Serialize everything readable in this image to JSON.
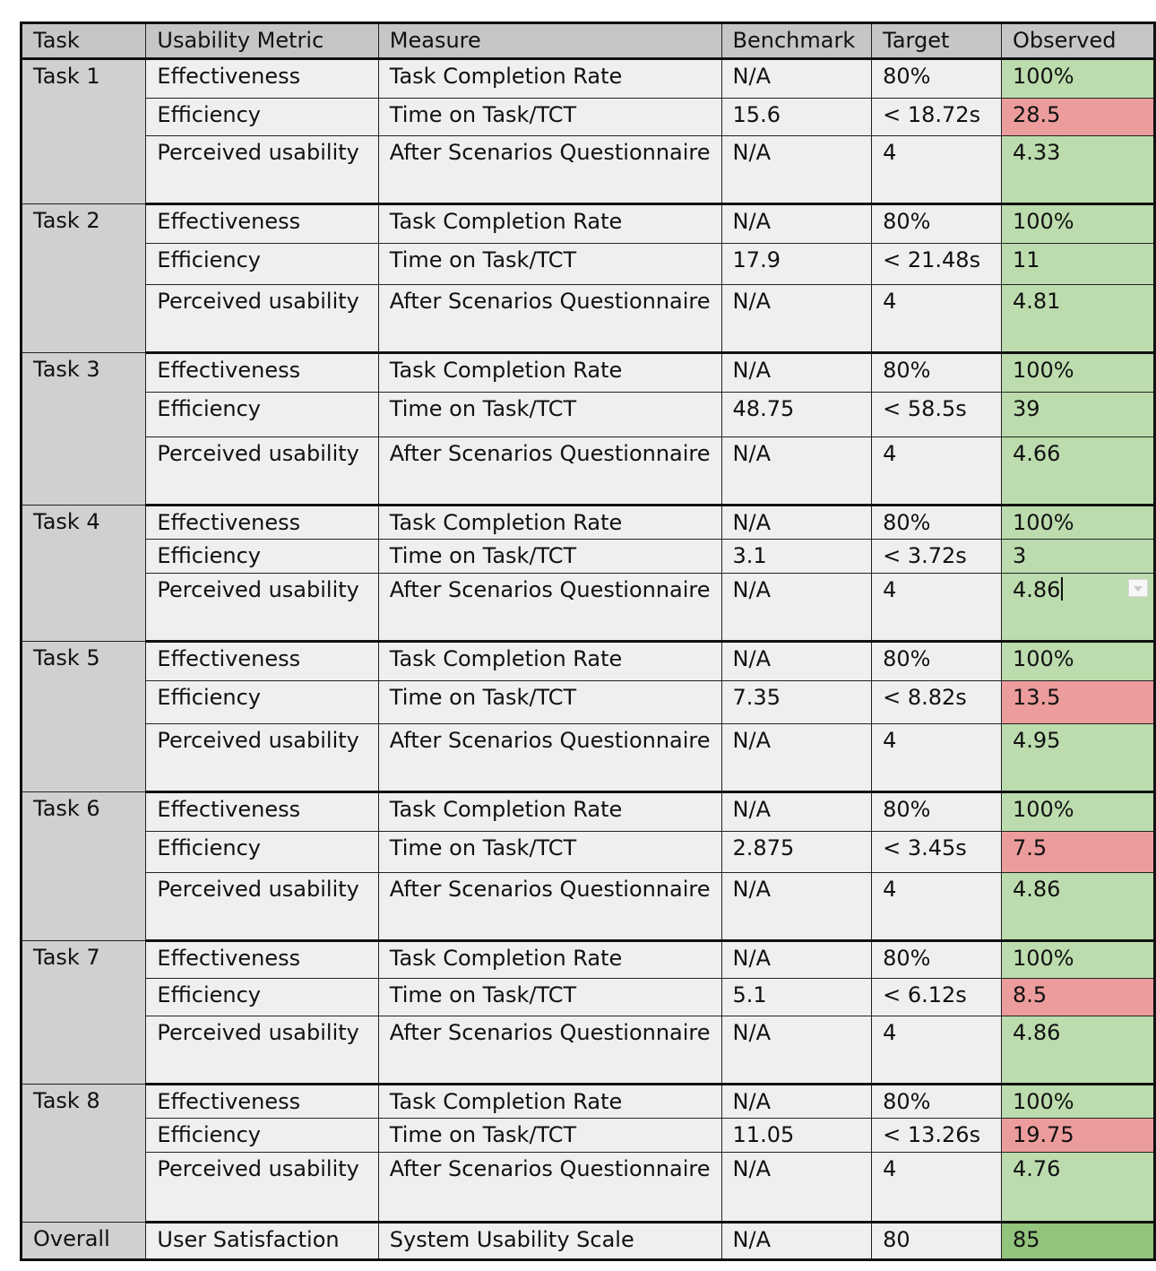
{
  "headers": [
    "Task",
    "Usability Metric",
    "Measure",
    "Benchmark",
    "Target",
    "Observed"
  ],
  "tasks": [
    {
      "name": "Task 1",
      "rows": [
        {
          "metric": "Effectiveness",
          "measure": "Task Completion Rate",
          "benchmark": "N/A",
          "target": "80%",
          "observed": "100%",
          "status": "pass"
        },
        {
          "metric": "Efficiency",
          "measure": "Time on Task/TCT",
          "benchmark": "15.6",
          "target": "< 18.72s",
          "observed": "28.5",
          "status": "fail"
        },
        {
          "metric": "Perceived usability",
          "measure": "After Scenarios Questionnaire",
          "benchmark": "N/A",
          "target": "4",
          "observed": "4.33",
          "status": "pass"
        }
      ]
    },
    {
      "name": "Task 2",
      "rows": [
        {
          "metric": "Effectiveness",
          "measure": "Task Completion Rate",
          "benchmark": "N/A",
          "target": "80%",
          "observed": "100%",
          "status": "pass"
        },
        {
          "metric": "Efficiency",
          "measure": "Time on Task/TCT",
          "benchmark": "17.9",
          "target": "< 21.48s",
          "observed": "11",
          "status": "pass"
        },
        {
          "metric": "Perceived usability",
          "measure": "After Scenarios Questionnaire",
          "benchmark": "N/A",
          "target": "4",
          "observed": "4.81",
          "status": "pass"
        }
      ]
    },
    {
      "name": "Task 3",
      "rows": [
        {
          "metric": "Effectiveness",
          "measure": "Task Completion Rate",
          "benchmark": "N/A",
          "target": "80%",
          "observed": "100%",
          "status": "pass"
        },
        {
          "metric": "Efficiency",
          "measure": "Time on Task/TCT",
          "benchmark": "48.75",
          "target": "< 58.5s",
          "observed": "39",
          "status": "pass"
        },
        {
          "metric": "Perceived usability",
          "measure": "After Scenarios Questionnaire",
          "benchmark": "N/A",
          "target": "4",
          "observed": "4.66",
          "status": "pass"
        }
      ]
    },
    {
      "name": "Task 4",
      "rows": [
        {
          "metric": "Effectiveness",
          "measure": "Task Completion Rate",
          "benchmark": "N/A",
          "target": "80%",
          "observed": "100%",
          "status": "pass"
        },
        {
          "metric": "Efficiency",
          "measure": "Time on Task/TCT",
          "benchmark": "3.1",
          "target": "< 3.72s",
          "observed": "3",
          "status": "pass"
        },
        {
          "metric": "Perceived usability",
          "measure": "After Scenarios Questionnaire",
          "benchmark": "N/A",
          "target": "4",
          "observed": "4.86",
          "status": "pass"
        }
      ]
    },
    {
      "name": "Task 5",
      "rows": [
        {
          "metric": "Effectiveness",
          "measure": "Task Completion Rate",
          "benchmark": "N/A",
          "target": "80%",
          "observed": "100%",
          "status": "pass"
        },
        {
          "metric": "Efficiency",
          "measure": "Time on Task/TCT",
          "benchmark": "7.35",
          "target": "< 8.82s",
          "observed": "13.5",
          "status": "fail"
        },
        {
          "metric": "Perceived usability",
          "measure": "After Scenarios Questionnaire",
          "benchmark": "N/A",
          "target": "4",
          "observed": "4.95",
          "status": "pass"
        }
      ]
    },
    {
      "name": "Task 6",
      "rows": [
        {
          "metric": "Effectiveness",
          "measure": "Task Completion Rate",
          "benchmark": "N/A",
          "target": "80%",
          "observed": "100%",
          "status": "pass"
        },
        {
          "metric": "Efficiency",
          "measure": "Time on Task/TCT",
          "benchmark": "2.875",
          "target": "< 3.45s",
          "observed": "7.5",
          "status": "fail"
        },
        {
          "metric": "Perceived usability",
          "measure": "After Scenarios Questionnaire",
          "benchmark": "N/A",
          "target": "4",
          "observed": "4.86",
          "status": "pass"
        }
      ]
    },
    {
      "name": "Task 7",
      "rows": [
        {
          "metric": "Effectiveness",
          "measure": "Task Completion Rate",
          "benchmark": "N/A",
          "target": "80%",
          "observed": "100%",
          "status": "pass"
        },
        {
          "metric": "Efficiency",
          "measure": "Time on Task/TCT",
          "benchmark": "5.1",
          "target": "< 6.12s",
          "observed": "8.5",
          "status": "fail"
        },
        {
          "metric": "Perceived usability",
          "measure": "After Scenarios Questionnaire",
          "benchmark": "N/A",
          "target": "4",
          "observed": "4.86",
          "status": "pass"
        }
      ]
    },
    {
      "name": "Task 8",
      "rows": [
        {
          "metric": "Effectiveness",
          "measure": "Task Completion Rate",
          "benchmark": "N/A",
          "target": "80%",
          "observed": "100%",
          "status": "pass"
        },
        {
          "metric": "Efficiency",
          "measure": "Time on Task/TCT",
          "benchmark": "11.05",
          "target": "< 13.26s",
          "observed": "19.75",
          "status": "fail"
        },
        {
          "metric": "Perceived usability",
          "measure": "After Scenarios Questionnaire",
          "benchmark": "N/A",
          "target": "4",
          "observed": "4.76",
          "status": "pass"
        }
      ]
    }
  ],
  "overall": {
    "name": "Overall",
    "metric": "User Satisfaction",
    "measure": "System Usability Scale",
    "benchmark": "N/A",
    "target": "80",
    "observed": "85"
  },
  "colors": {
    "pass": "#bcdcae",
    "fail": "#ec9c9c",
    "overall": "#93c47d",
    "header": "#c6c6c6",
    "task_column": "#d0d0d0",
    "cell": "#efefef"
  },
  "editing_cell": {
    "task_index": 3,
    "row_index": 2
  },
  "dropdown_icon": "chevron-down-icon"
}
